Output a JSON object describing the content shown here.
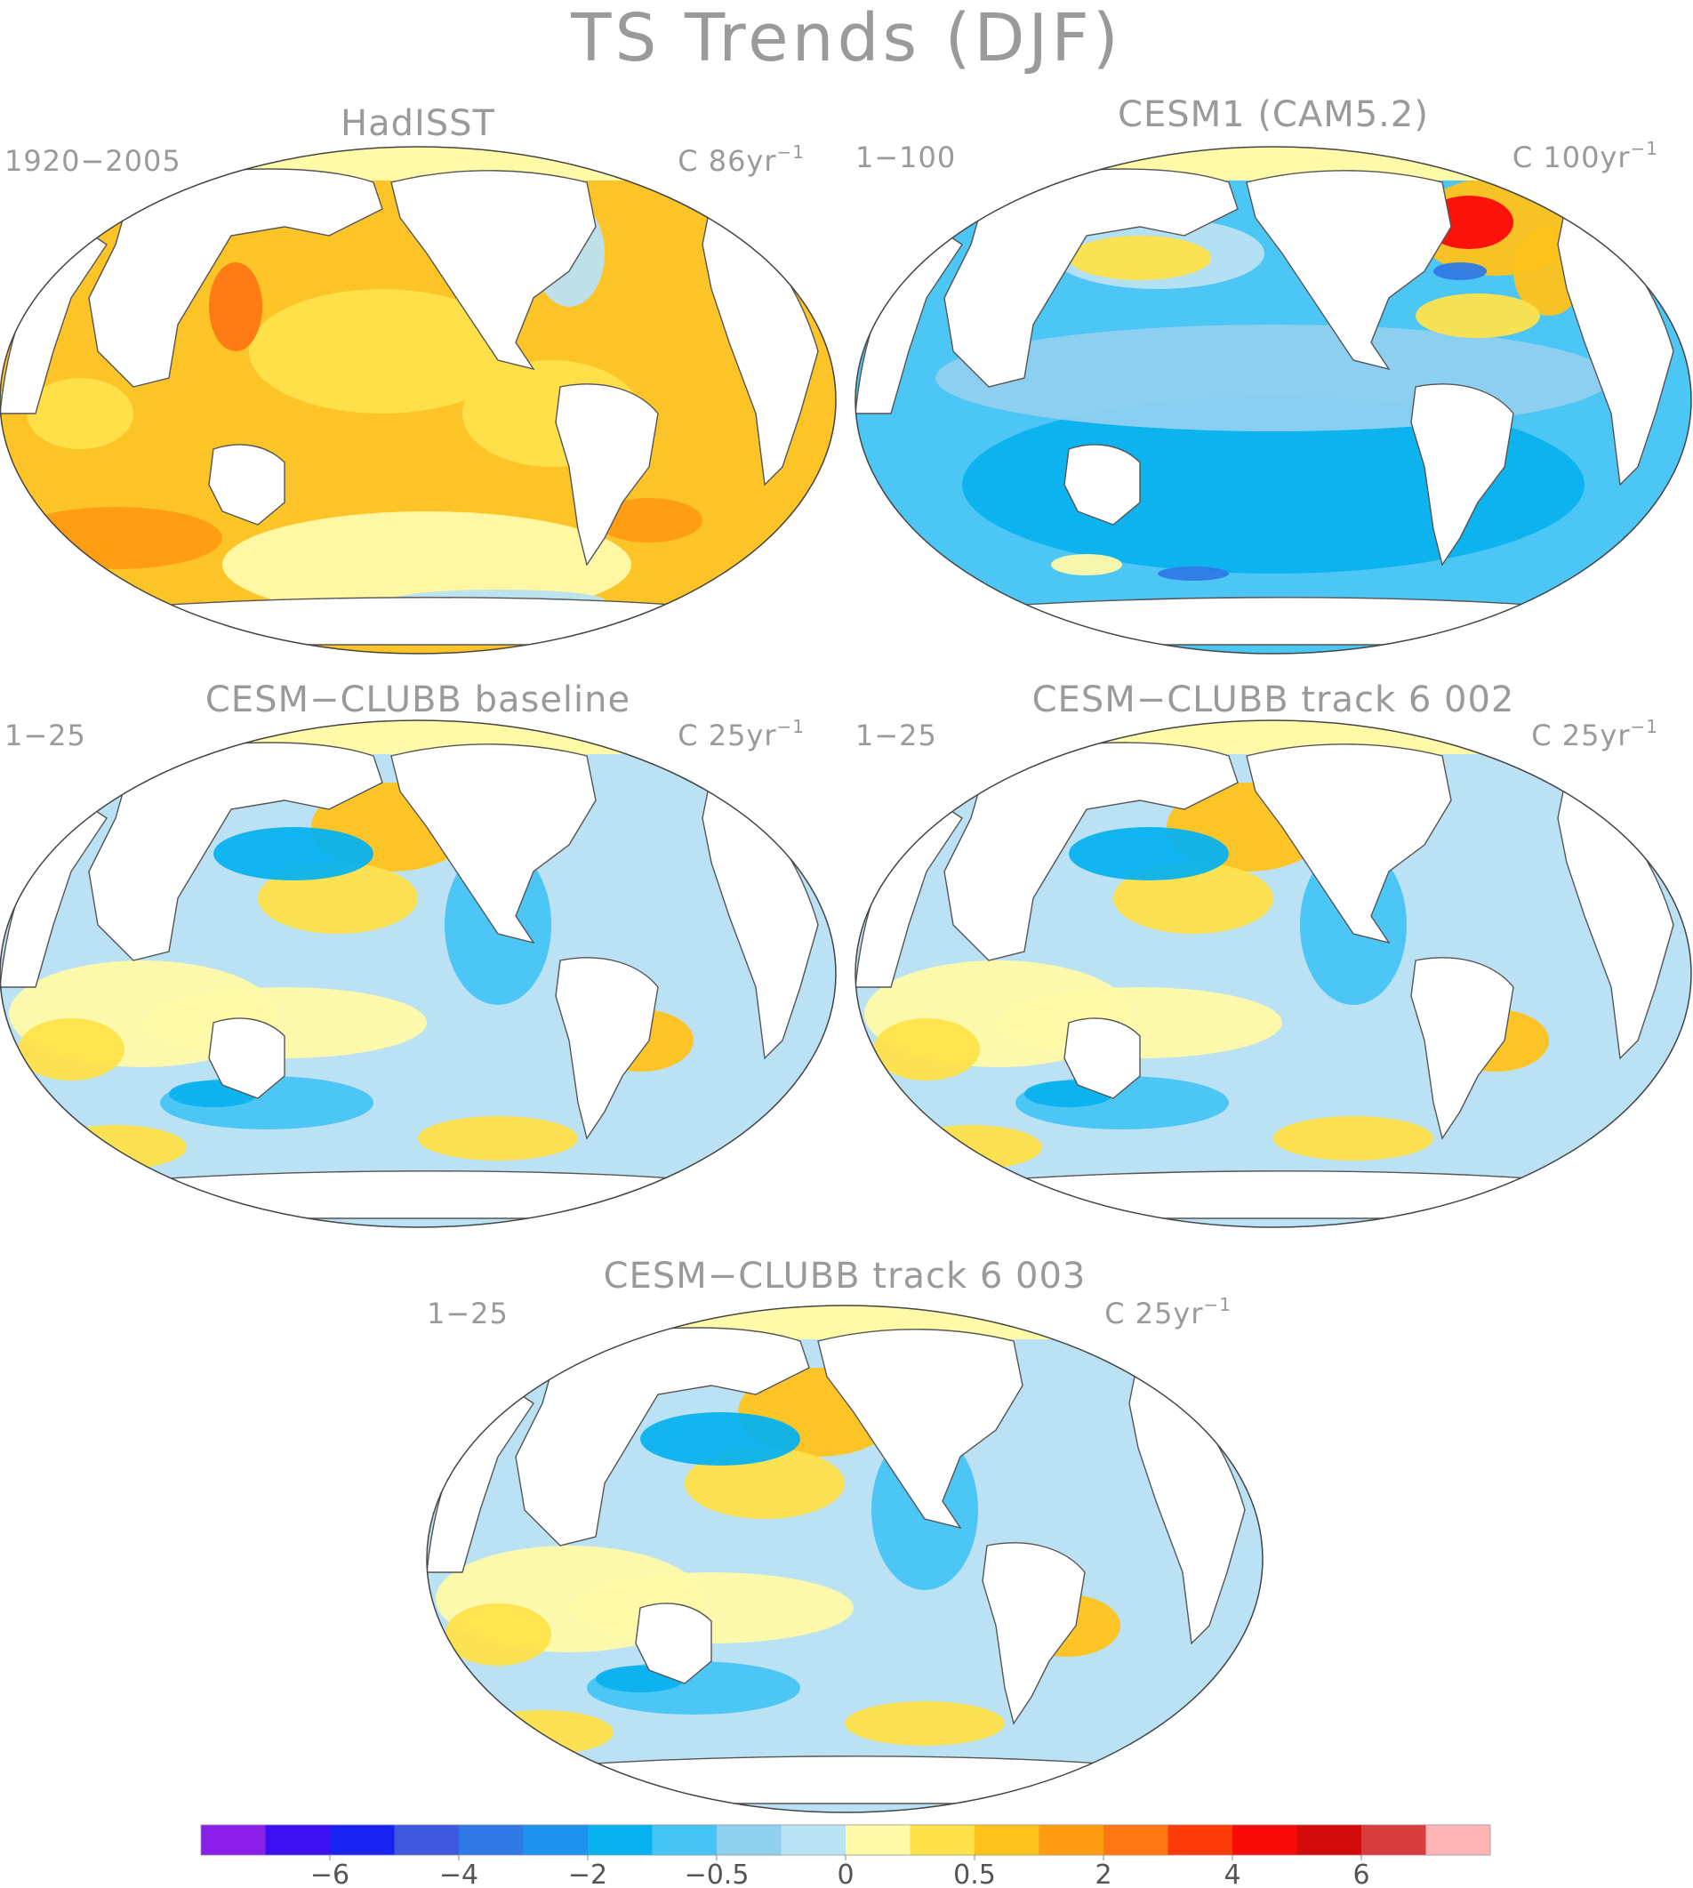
{
  "title": "TS Trends (DJF)",
  "colors": {
    "bar": [
      "#8a1fea",
      "#3a10f0",
      "#1a22f2",
      "#3f59de",
      "#2f7ae6",
      "#1e93ee",
      "#08b2ee",
      "#46c4f4",
      "#8fd0ef",
      "#b9e2f3",
      "#fffaa8",
      "#ffe24a",
      "#ffc21a",
      "#ff9c12",
      "#ff7712",
      "#ff3b0a",
      "#fb0a0a",
      "#d20a0a",
      "#d83c3c",
      "#ffb5b5"
    ],
    "text": "#9a9a9a"
  },
  "colorbar": {
    "labels": [
      "−6",
      "−4",
      "−2",
      "−0.5",
      "0",
      "0.5",
      "2",
      "4",
      "6"
    ]
  },
  "panels": [
    {
      "id": "p1",
      "title": "HadISST",
      "left": "1920−2005",
      "right": "C 86yr",
      "sup": "−1",
      "dominant": "warm-strong"
    },
    {
      "id": "p2",
      "title": "CESM1 (CAM5.2)",
      "left": "1−100",
      "right": "C 100yr",
      "sup": "−1",
      "dominant": "cool-strong"
    },
    {
      "id": "p3",
      "title": "CESM−CLUBB baseline",
      "left": "1−25",
      "right": "C 25yr",
      "sup": "−1",
      "dominant": "mixed"
    },
    {
      "id": "p4",
      "title": "CESM−CLUBB track 6 002",
      "left": "1−25",
      "right": "C 25yr",
      "sup": "−1",
      "dominant": "mixed"
    },
    {
      "id": "p5",
      "title": "CESM−CLUBB track 6 003",
      "left": "1−25",
      "right": "C 25yr",
      "sup": "−1",
      "dominant": "mixed"
    }
  ]
}
